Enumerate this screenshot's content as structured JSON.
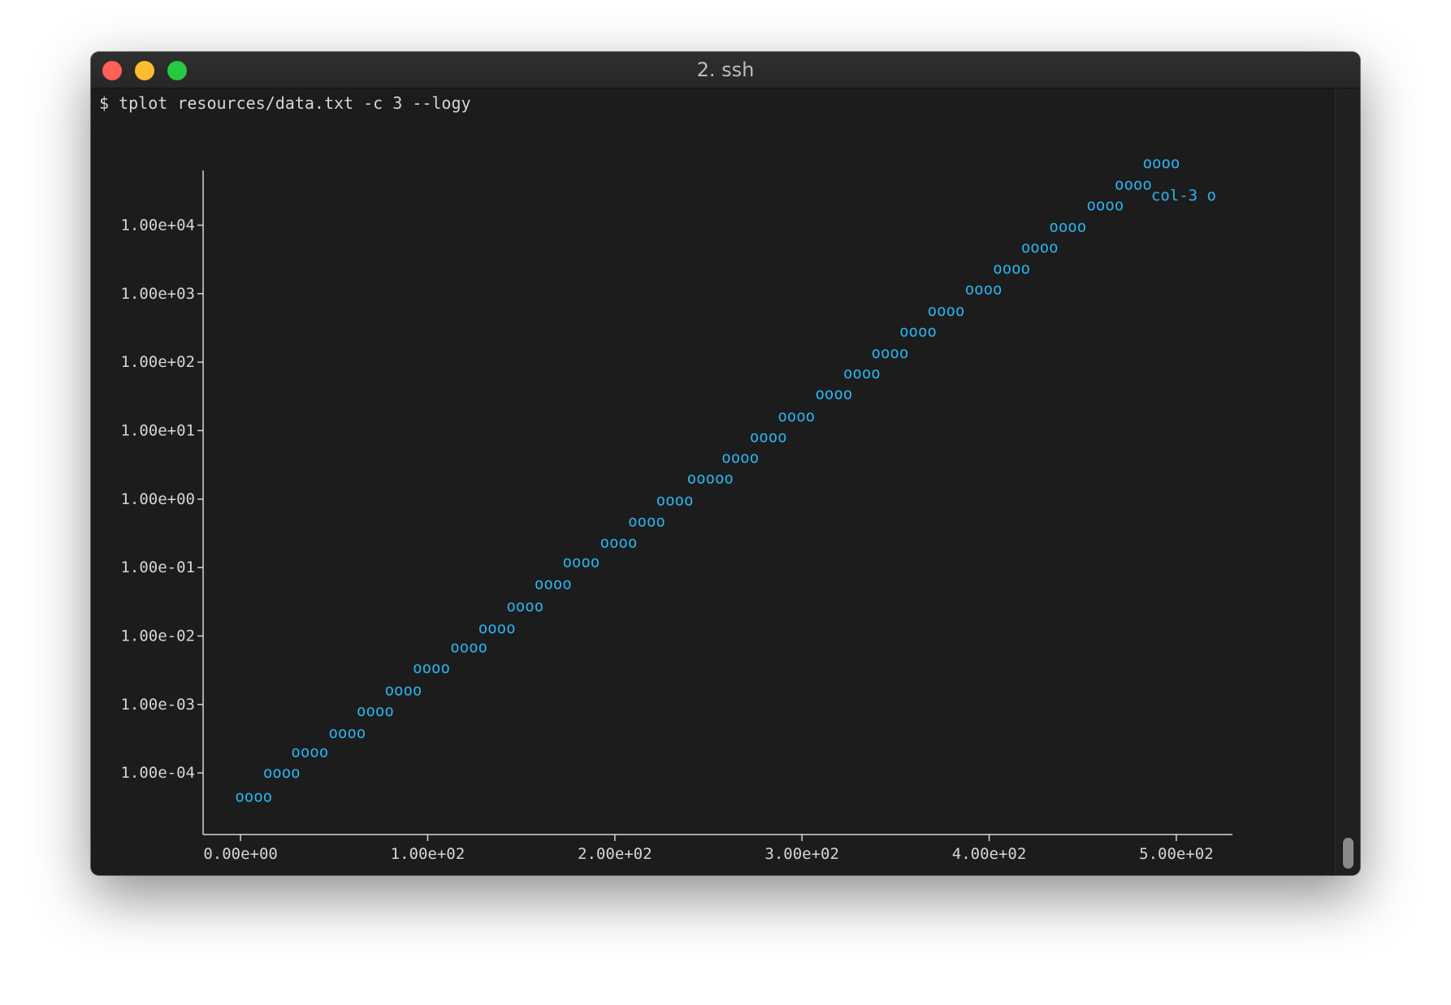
{
  "window": {
    "title": "2. ssh"
  },
  "terminal": {
    "prompt": "$ tplot resources/data.txt -c 3 --logy"
  },
  "colors": {
    "window_bg": "#1c1c1c",
    "text": "#d6d6d6",
    "series": "#2ab4f0",
    "axis": "#d6d6d6"
  },
  "chart_data": {
    "type": "scatter",
    "ylog": true,
    "xlim": [
      -20,
      530
    ],
    "ylim": [
      1.26e-05,
      63000
    ],
    "x_ticks": [
      {
        "value": 0,
        "label": "0.00e+00"
      },
      {
        "value": 100,
        "label": "1.00e+02"
      },
      {
        "value": 200,
        "label": "2.00e+02"
      },
      {
        "value": 300,
        "label": "3.00e+02"
      },
      {
        "value": 400,
        "label": "4.00e+02"
      },
      {
        "value": 500,
        "label": "5.00e+02"
      }
    ],
    "y_ticks": [
      {
        "value": 10000,
        "label": "1.00e+04"
      },
      {
        "value": 1000,
        "label": "1.00e+03"
      },
      {
        "value": 100,
        "label": "1.00e+02"
      },
      {
        "value": 10,
        "label": "1.00e+01"
      },
      {
        "value": 1,
        "label": "1.00e+00"
      },
      {
        "value": 0.1,
        "label": "1.00e-01"
      },
      {
        "value": 0.01,
        "label": "1.00e-02"
      },
      {
        "value": 0.001,
        "label": "1.00e-03"
      },
      {
        "value": 0.0001,
        "label": "1.00e-04"
      }
    ],
    "legend": {
      "label": "col-3",
      "marker": "o",
      "placement": "top-right"
    },
    "series": [
      {
        "name": "col-3",
        "marker": "o",
        "points": [
          {
            "x": 7,
            "y": 4.5e-05,
            "text": "oooo"
          },
          {
            "x": 22,
            "y": 0.0001,
            "text": "oooo"
          },
          {
            "x": 37,
            "y": 0.0002,
            "text": "oooo"
          },
          {
            "x": 57,
            "y": 0.00038,
            "text": "oooo"
          },
          {
            "x": 72,
            "y": 0.0008,
            "text": "oooo"
          },
          {
            "x": 87,
            "y": 0.0016,
            "text": "oooo"
          },
          {
            "x": 102,
            "y": 0.0034,
            "text": "oooo"
          },
          {
            "x": 122,
            "y": 0.0068,
            "text": "oooo"
          },
          {
            "x": 137,
            "y": 0.013,
            "text": "oooo"
          },
          {
            "x": 152,
            "y": 0.027,
            "text": "oooo"
          },
          {
            "x": 167,
            "y": 0.057,
            "text": "oooo"
          },
          {
            "x": 182,
            "y": 0.12,
            "text": "oooo"
          },
          {
            "x": 202,
            "y": 0.23,
            "text": "oooo"
          },
          {
            "x": 217,
            "y": 0.47,
            "text": "oooo"
          },
          {
            "x": 232,
            "y": 0.95,
            "text": "oooo"
          },
          {
            "x": 251,
            "y": 2.0,
            "text": "ooooo"
          },
          {
            "x": 267,
            "y": 4.0,
            "text": "oooo"
          },
          {
            "x": 282,
            "y": 8.0,
            "text": "oooo"
          },
          {
            "x": 297,
            "y": 16,
            "text": "oooo"
          },
          {
            "x": 317,
            "y": 34,
            "text": "oooo"
          },
          {
            "x": 332,
            "y": 68,
            "text": "oooo"
          },
          {
            "x": 347,
            "y": 135,
            "text": "oooo"
          },
          {
            "x": 362,
            "y": 280,
            "text": "oooo"
          },
          {
            "x": 377,
            "y": 560,
            "text": "oooo"
          },
          {
            "x": 397,
            "y": 1150,
            "text": "oooo"
          },
          {
            "x": 412,
            "y": 2300,
            "text": "oooo"
          },
          {
            "x": 427,
            "y": 4700,
            "text": "oooo"
          },
          {
            "x": 442,
            "y": 9500,
            "text": "oooo"
          },
          {
            "x": 462,
            "y": 19500,
            "text": "oooo"
          },
          {
            "x": 477,
            "y": 39000,
            "text": "oooo"
          },
          {
            "x": 492,
            "y": 80000,
            "text": "oooo"
          }
        ]
      }
    ]
  }
}
